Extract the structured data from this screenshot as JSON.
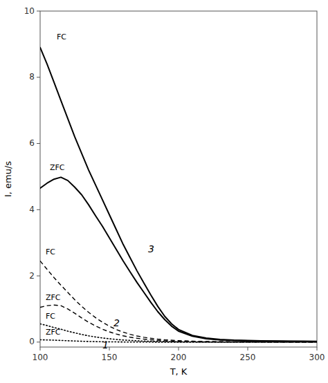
{
  "chart_data": {
    "type": "line",
    "title": "",
    "xlabel": "T, K",
    "ylabel": "I, emu/s",
    "xlim": [
      100,
      300
    ],
    "ylim": [
      -0.15,
      10
    ],
    "xticks": [
      100,
      150,
      200,
      250,
      300
    ],
    "yticks": [
      0,
      2,
      4,
      6,
      8,
      10
    ],
    "grid": false,
    "series": [
      {
        "color": "#000000",
        "line_style": "solid",
        "x": [
          100,
          105,
          110,
          115,
          120,
          125,
          130,
          135,
          140,
          145,
          150,
          155,
          160,
          165,
          170,
          175,
          180,
          185,
          190,
          195,
          200,
          210,
          220,
          230,
          240,
          250,
          260,
          270,
          280,
          290,
          300
        ],
        "values": [
          8.9,
          8.4,
          7.85,
          7.3,
          6.75,
          6.2,
          5.7,
          5.2,
          4.75,
          4.3,
          3.85,
          3.4,
          2.95,
          2.55,
          2.15,
          1.78,
          1.42,
          1.08,
          0.78,
          0.55,
          0.38,
          0.2,
          0.12,
          0.08,
          0.06,
          0.05,
          0.04,
          0.035,
          0.03,
          0.025,
          0.02
        ]
      },
      {
        "color": "#000000",
        "line_style": "solid",
        "x": [
          100,
          105,
          110,
          115,
          120,
          125,
          130,
          135,
          140,
          145,
          150,
          155,
          160,
          165,
          170,
          175,
          180,
          185,
          190,
          195,
          200,
          210,
          220,
          230,
          240,
          250,
          260,
          270,
          280,
          290,
          300
        ],
        "values": [
          4.65,
          4.8,
          4.92,
          4.98,
          4.88,
          4.68,
          4.45,
          4.15,
          3.82,
          3.5,
          3.15,
          2.8,
          2.45,
          2.12,
          1.8,
          1.5,
          1.2,
          0.92,
          0.68,
          0.48,
          0.33,
          0.18,
          0.1,
          0.065,
          0.048,
          0.038,
          0.03,
          0.025,
          0.022,
          0.018,
          0.015
        ]
      },
      {
        "color": "#000000",
        "line_style": "dashed",
        "x": [
          100,
          105,
          110,
          115,
          120,
          125,
          130,
          135,
          140,
          145,
          150,
          155,
          160,
          165,
          170,
          175,
          180,
          185,
          190,
          200,
          210,
          220,
          240,
          260,
          280,
          300
        ],
        "values": [
          2.45,
          2.2,
          1.95,
          1.72,
          1.5,
          1.28,
          1.08,
          0.9,
          0.74,
          0.6,
          0.48,
          0.38,
          0.3,
          0.235,
          0.185,
          0.145,
          0.115,
          0.09,
          0.07,
          0.045,
          0.028,
          0.018,
          0.009,
          0.005,
          0.003,
          0.002
        ]
      },
      {
        "color": "#000000",
        "line_style": "dashed",
        "x": [
          100,
          105,
          110,
          115,
          120,
          125,
          130,
          135,
          140,
          145,
          150,
          155,
          160,
          165,
          170,
          175,
          180,
          185,
          190,
          200,
          210,
          220,
          240,
          260,
          280,
          300
        ],
        "values": [
          1.05,
          1.1,
          1.12,
          1.1,
          1.0,
          0.87,
          0.73,
          0.6,
          0.49,
          0.39,
          0.31,
          0.245,
          0.19,
          0.148,
          0.115,
          0.09,
          0.07,
          0.054,
          0.041,
          0.026,
          0.016,
          0.01,
          0.005,
          0.003,
          0.002,
          0.001
        ]
      },
      {
        "color": "#000000",
        "line_style": "dotted",
        "x": [
          100,
          105,
          110,
          115,
          120,
          125,
          130,
          135,
          140,
          145,
          150,
          155,
          160,
          170,
          180,
          190,
          200,
          220,
          240,
          260,
          280,
          300
        ],
        "values": [
          0.55,
          0.5,
          0.44,
          0.39,
          0.33,
          0.28,
          0.23,
          0.19,
          0.155,
          0.125,
          0.1,
          0.08,
          0.062,
          0.038,
          0.023,
          0.014,
          0.008,
          0.003,
          0.001,
          0.0,
          0.0,
          0.0
        ]
      },
      {
        "color": "#000000",
        "line_style": "dotted",
        "x": [
          100,
          105,
          110,
          115,
          120,
          125,
          130,
          135,
          140,
          145,
          150,
          160,
          170,
          180,
          190,
          200,
          220,
          240,
          260,
          280,
          300
        ],
        "values": [
          0.07,
          0.065,
          0.058,
          0.05,
          0.041,
          0.032,
          0.025,
          0.019,
          0.014,
          0.01,
          0.007,
          0.003,
          0.001,
          0.0,
          -0.001,
          -0.002,
          -0.002,
          -0.002,
          -0.002,
          -0.002,
          -0.002
        ]
      }
    ],
    "annotations": [
      {
        "text": "FC",
        "x": 112,
        "y": 9.1
      },
      {
        "text": "ZFC",
        "x": 107,
        "y": 5.15
      },
      {
        "text": "3",
        "x": 178,
        "y": 2.8
      },
      {
        "text": "FC",
        "x": 104,
        "y": 2.6
      },
      {
        "text": "ZFC",
        "x": 104,
        "y": 1.22
      },
      {
        "text": "2",
        "x": 153,
        "y": 0.56
      },
      {
        "text": "FC",
        "x": 104,
        "y": 0.67
      },
      {
        "text": "ZFC",
        "x": 104,
        "y": 0.18
      },
      {
        "text": "1",
        "x": 145,
        "y": -0.11
      }
    ]
  }
}
